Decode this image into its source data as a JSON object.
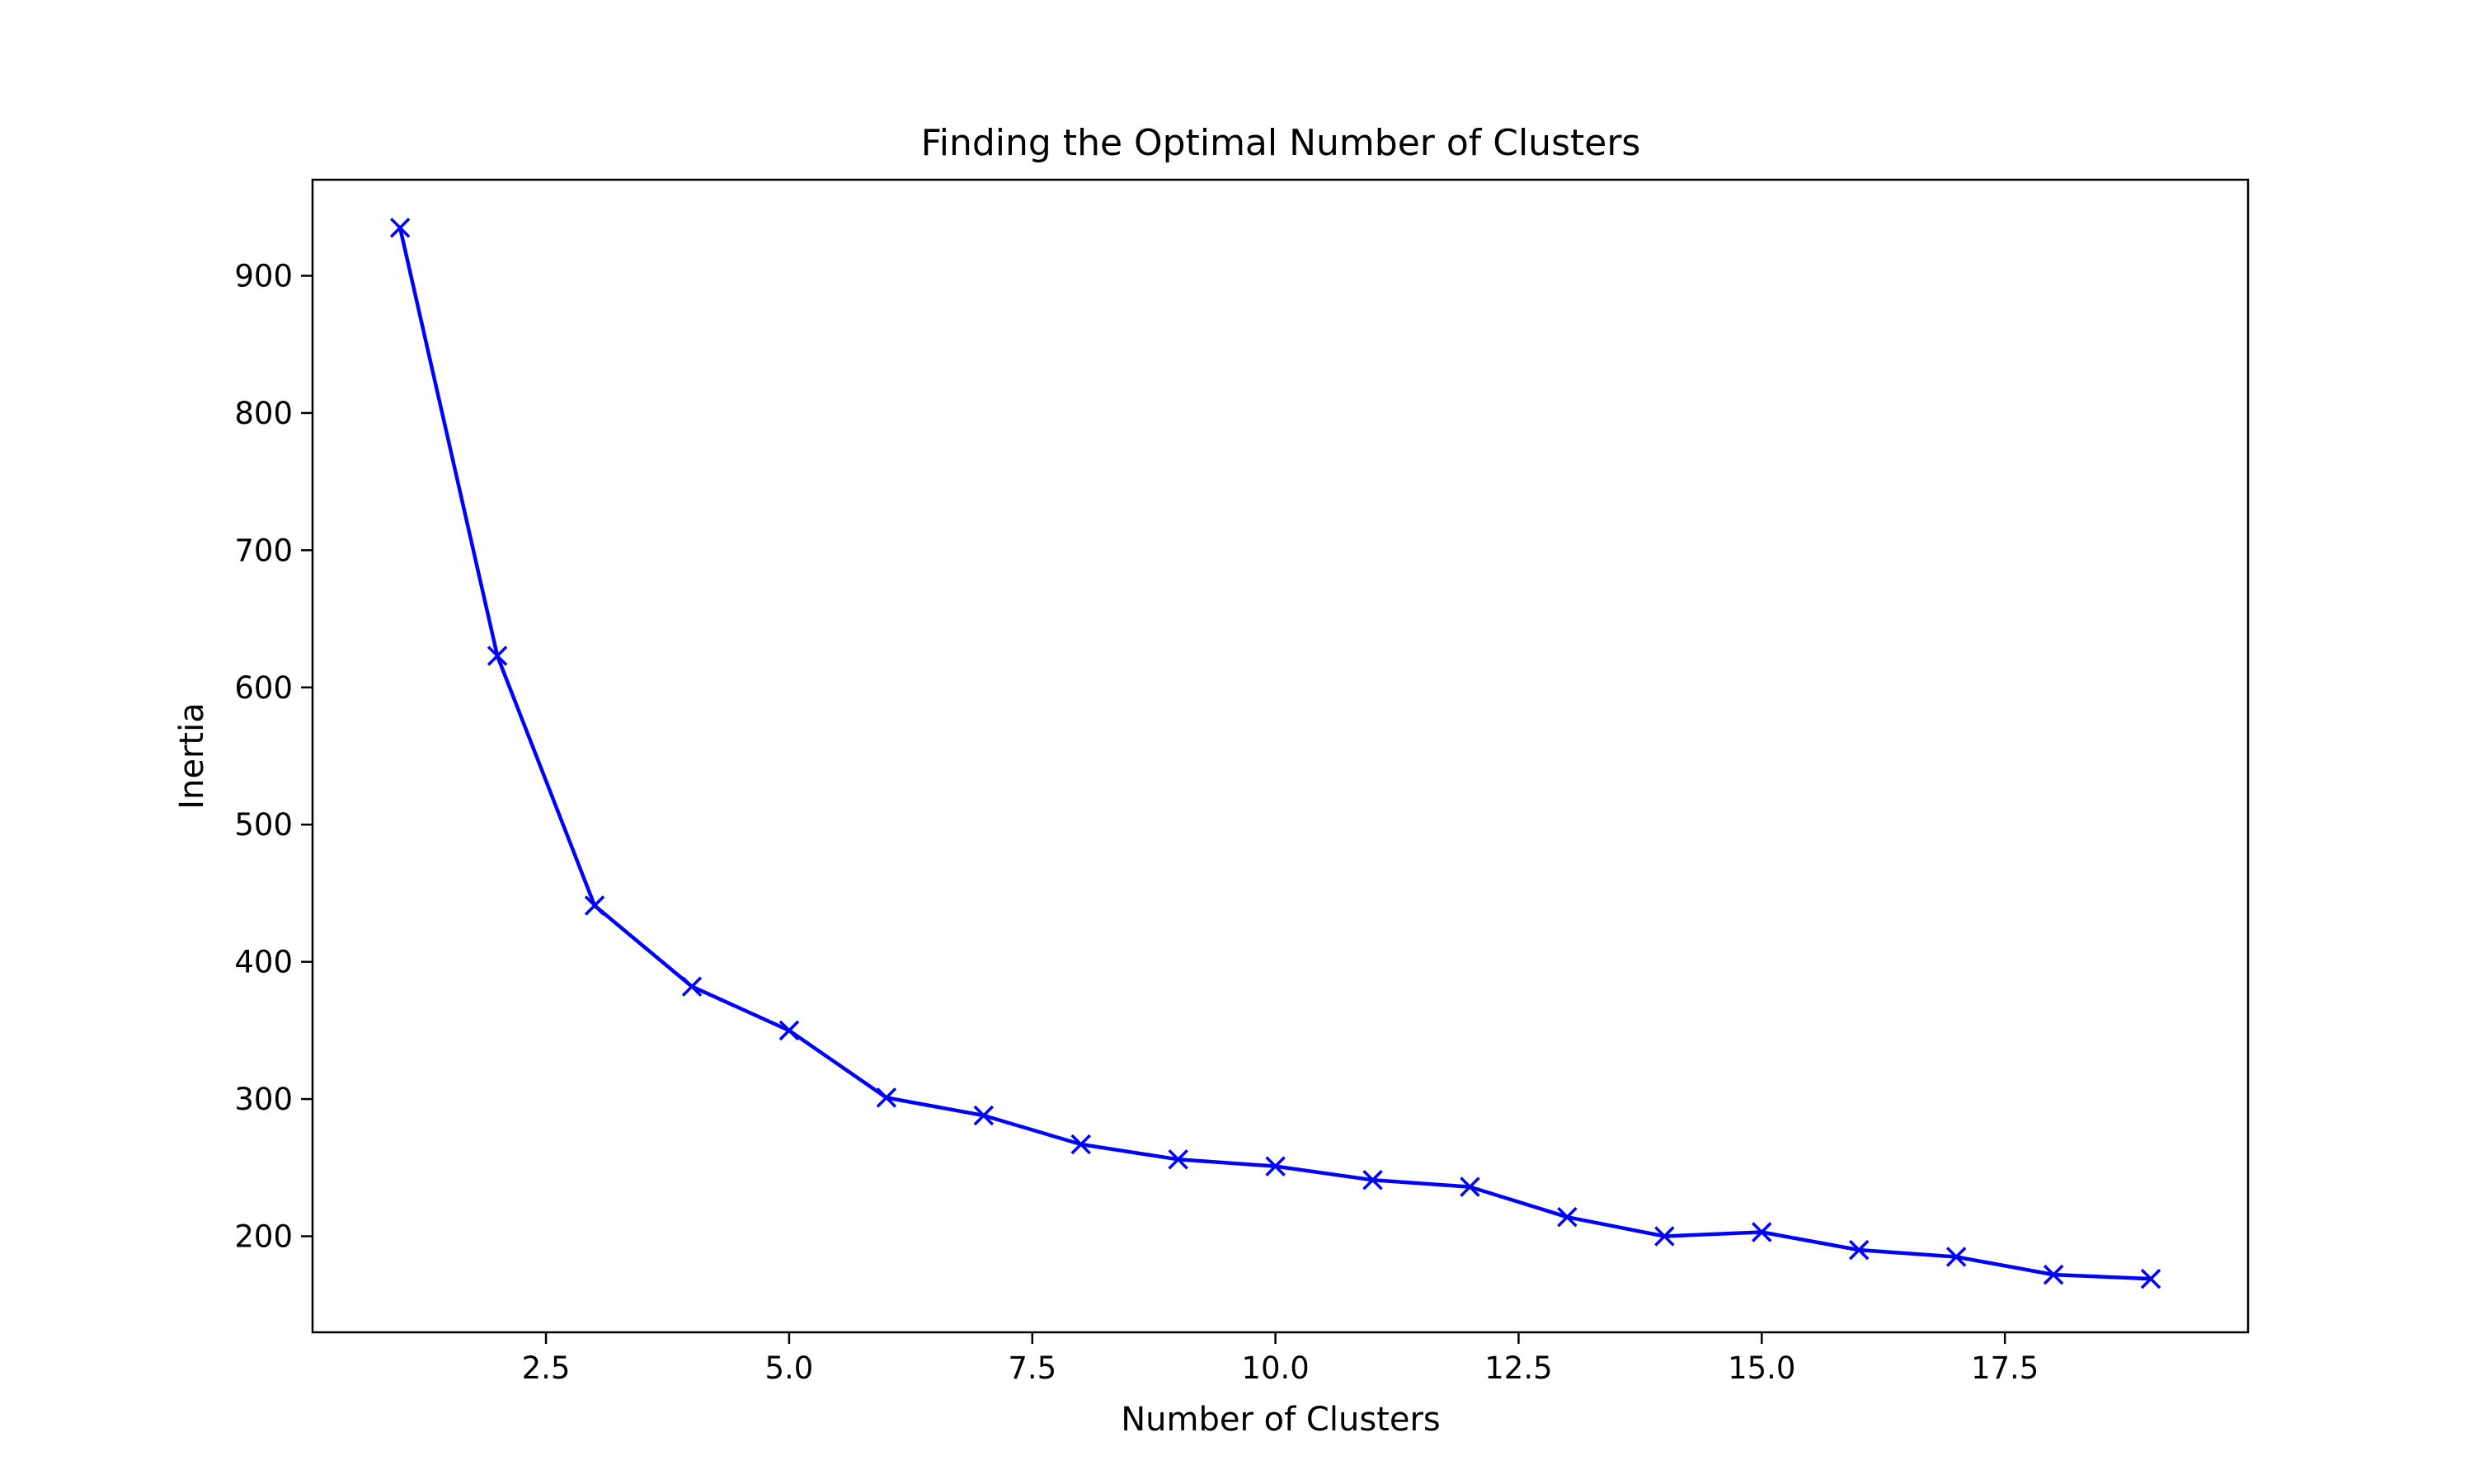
{
  "chart_data": {
    "type": "line",
    "title": "Finding the Optimal Number of Clusters",
    "xlabel": "Number of Clusters",
    "ylabel": "Inertia",
    "xlim": [
      0.1,
      20.0
    ],
    "ylim": [
      130,
      970
    ],
    "xticks": [
      2.5,
      5.0,
      7.5,
      10.0,
      12.5,
      15.0,
      17.5
    ],
    "xtick_labels": [
      "2.5",
      "5.0",
      "7.5",
      "10.0",
      "12.5",
      "15.0",
      "17.5"
    ],
    "yticks": [
      200,
      300,
      400,
      500,
      600,
      700,
      800,
      900
    ],
    "ytick_labels": [
      "200",
      "300",
      "400",
      "500",
      "600",
      "700",
      "800",
      "900"
    ],
    "grid": false,
    "marker": "x",
    "color": "#0000ff",
    "series": [
      {
        "x": [
          1,
          2,
          3,
          4,
          5,
          6,
          7,
          8,
          9,
          10,
          11,
          12,
          13,
          14,
          15,
          16,
          17,
          18,
          19
        ],
        "values": [
          935,
          623,
          441,
          382,
          350,
          301,
          288,
          267,
          256,
          251,
          241,
          236,
          214,
          200,
          203,
          190,
          185,
          172,
          169
        ]
      }
    ]
  }
}
